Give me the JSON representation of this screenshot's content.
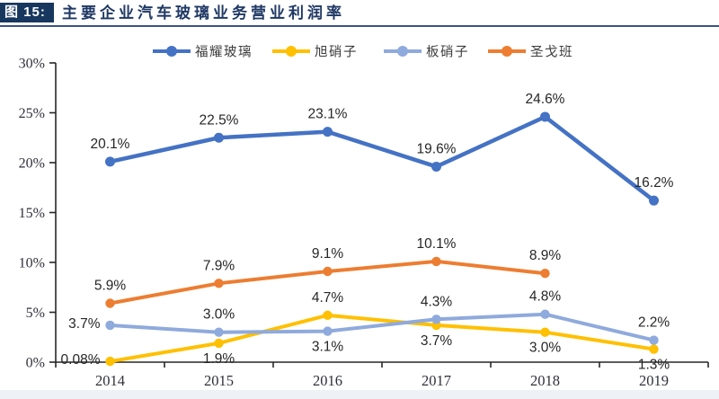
{
  "header": {
    "figure_label": "图 15:",
    "title": "主要企业汽车玻璃业务营业利润率",
    "badge_bg": "#17375E",
    "title_color": "#1F3864",
    "rule_color": "#3D5380"
  },
  "chart_data": {
    "type": "line",
    "title": "主要企业汽车玻璃业务营业利润率",
    "categories": [
      "2014",
      "2015",
      "2016",
      "2017",
      "2018",
      "2019"
    ],
    "series": [
      {
        "id": "fuyao-glass",
        "name": "福耀玻璃",
        "color": "#4472C4",
        "values": [
          20.1,
          22.5,
          23.1,
          19.6,
          24.6,
          16.2
        ],
        "labels": [
          "20.1%",
          "22.5%",
          "23.1%",
          "19.6%",
          "24.6%",
          "16.2%"
        ],
        "label_placement": [
          "above",
          "above",
          "above",
          "above",
          "above",
          "above"
        ]
      },
      {
        "id": "agc",
        "name": "旭硝子",
        "color": "#FFC000",
        "values": [
          0.08,
          1.9,
          4.7,
          3.7,
          3.0,
          1.3
        ],
        "labels": [
          "0.08%",
          "1.9%",
          "4.7%",
          "3.7%",
          "3.0%",
          "1.3%"
        ],
        "label_placement": [
          "left",
          "below",
          "above",
          "below",
          "below",
          "below"
        ]
      },
      {
        "id": "nsg",
        "name": "板硝子",
        "color": "#8FAADC",
        "values": [
          3.7,
          3.0,
          3.1,
          4.3,
          4.8,
          2.2
        ],
        "labels": [
          "3.7%",
          "3.0%",
          "3.1%",
          "4.3%",
          "4.8%",
          "2.2%"
        ],
        "label_placement": [
          "left",
          "above",
          "below",
          "above",
          "above",
          "above"
        ]
      },
      {
        "id": "saint-gobain",
        "name": "圣戈班",
        "color": "#ED7D31",
        "values": [
          5.9,
          7.9,
          9.1,
          10.1,
          8.9,
          null
        ],
        "labels": [
          "5.9%",
          "7.9%",
          "9.1%",
          "10.1%",
          "8.9%",
          ""
        ],
        "label_placement": [
          "above",
          "above",
          "above",
          "above",
          "above",
          "above"
        ]
      }
    ],
    "ylim": [
      0,
      30
    ],
    "ytick_step": 5,
    "ytick_labels": [
      "0%",
      "5%",
      "10%",
      "15%",
      "20%",
      "25%",
      "30%"
    ],
    "xlabel": "",
    "ylabel": "",
    "grid": false,
    "legend_position": "top",
    "axis_color": "#262626",
    "data_label_color": "#262626",
    "tick_label_color": "#30303a",
    "legend_text_color": "#3d3d3d"
  }
}
